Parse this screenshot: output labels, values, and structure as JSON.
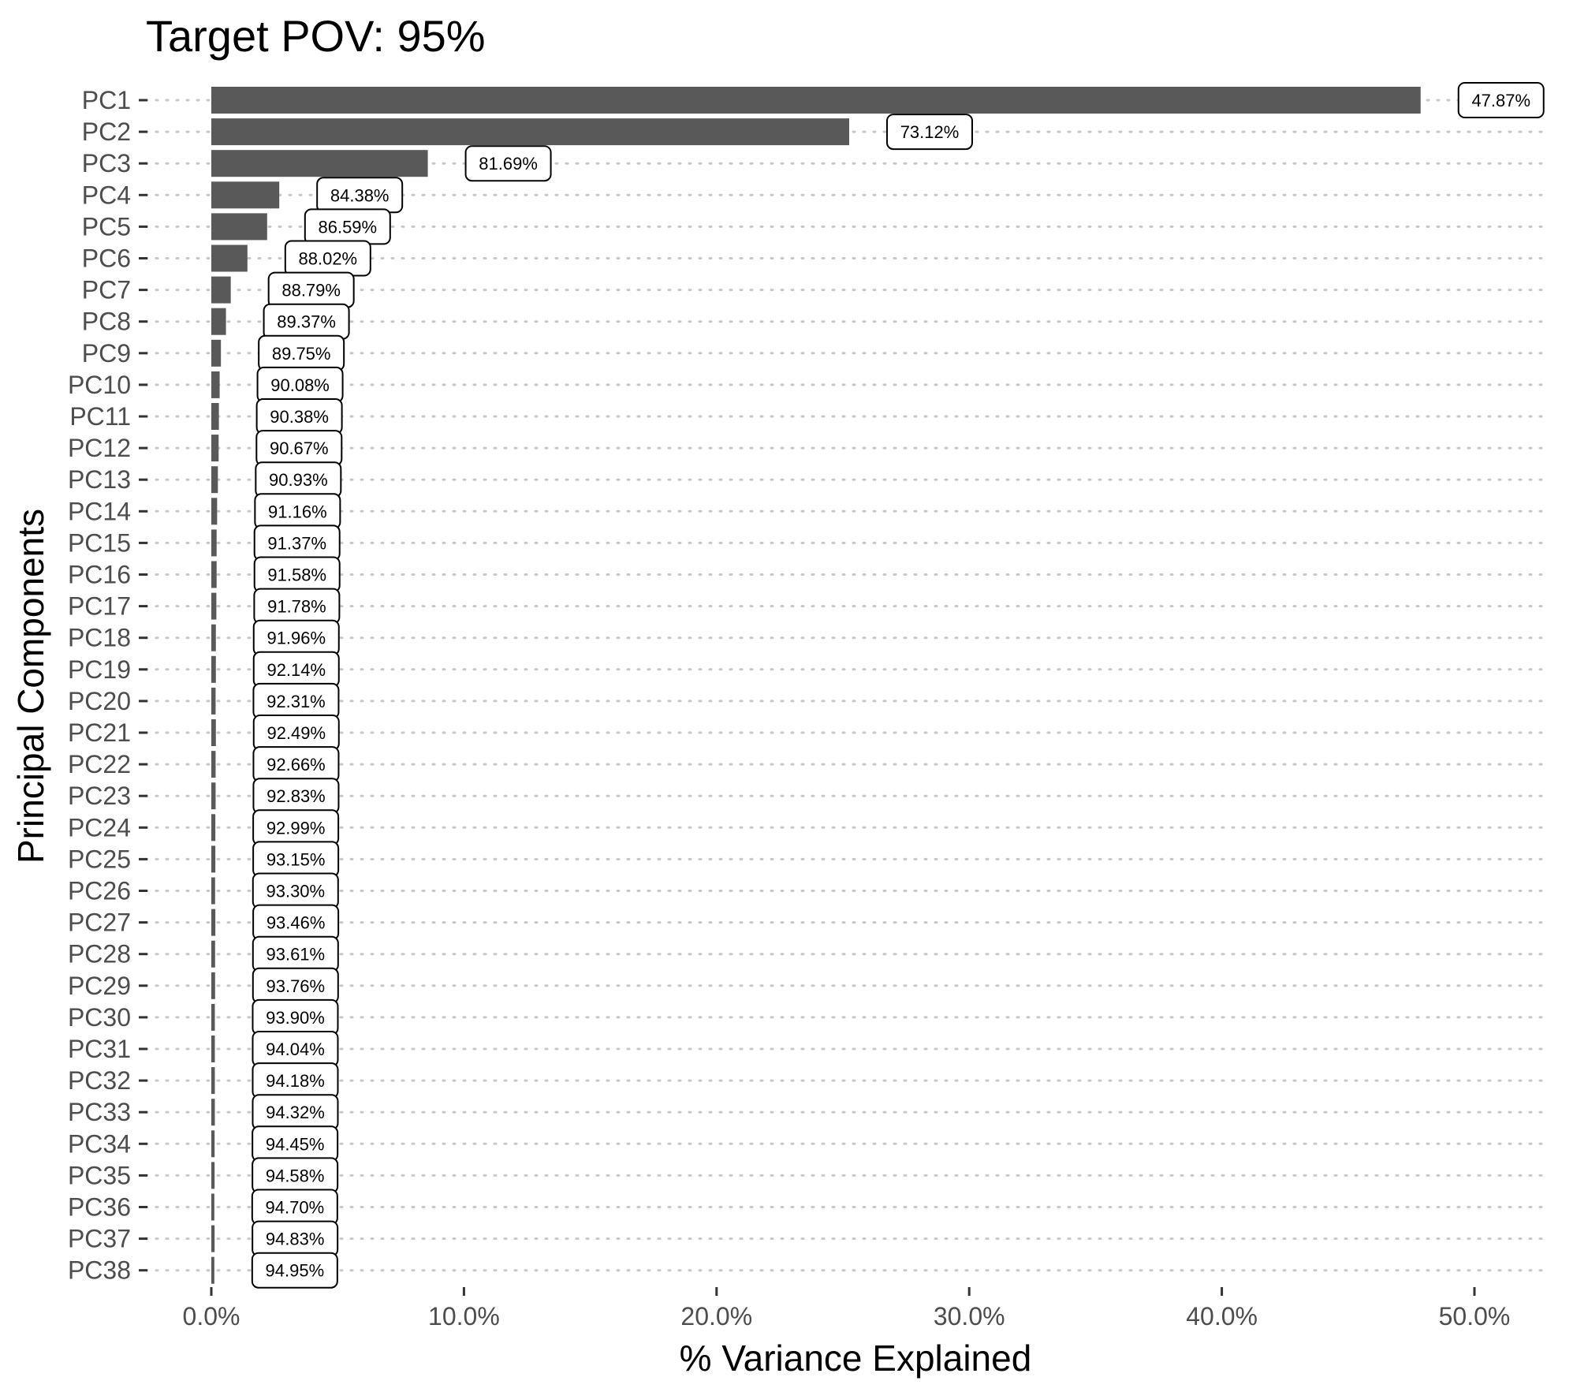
{
  "chart_data": {
    "type": "bar",
    "orientation": "horizontal",
    "title": "Target POV: 95%",
    "xlabel": "% Variance Explained",
    "ylabel": "Principal Components",
    "xlim": [
      0,
      52.5
    ],
    "x_ticks": [
      0,
      10,
      20,
      30,
      40,
      50
    ],
    "x_tick_labels": [
      "0.0%",
      "10.0%",
      "20.0%",
      "30.0%",
      "40.0%",
      "50.0%"
    ],
    "grid": "dotted horizontal",
    "categories": [
      "PC1",
      "PC2",
      "PC3",
      "PC4",
      "PC5",
      "PC6",
      "PC7",
      "PC8",
      "PC9",
      "PC10",
      "PC11",
      "PC12",
      "PC13",
      "PC14",
      "PC15",
      "PC16",
      "PC17",
      "PC18",
      "PC19",
      "PC20",
      "PC21",
      "PC22",
      "PC23",
      "PC24",
      "PC25",
      "PC26",
      "PC27",
      "PC28",
      "PC29",
      "PC30",
      "PC31",
      "PC32",
      "PC33",
      "PC34",
      "PC35",
      "PC36",
      "PC37",
      "PC38"
    ],
    "values": [
      47.87,
      25.25,
      8.57,
      2.69,
      2.21,
      1.43,
      0.77,
      0.58,
      0.38,
      0.33,
      0.3,
      0.29,
      0.26,
      0.23,
      0.21,
      0.21,
      0.2,
      0.18,
      0.18,
      0.17,
      0.18,
      0.17,
      0.17,
      0.16,
      0.16,
      0.15,
      0.16,
      0.15,
      0.15,
      0.14,
      0.14,
      0.14,
      0.14,
      0.13,
      0.13,
      0.12,
      0.13,
      0.12
    ],
    "cumulative_labels": [
      "47.87%",
      "73.12%",
      "81.69%",
      "84.38%",
      "86.59%",
      "88.02%",
      "88.79%",
      "89.37%",
      "89.75%",
      "90.08%",
      "90.38%",
      "90.67%",
      "90.93%",
      "91.16%",
      "91.37%",
      "91.58%",
      "91.78%",
      "91.96%",
      "92.14%",
      "92.31%",
      "92.49%",
      "92.66%",
      "92.83%",
      "92.99%",
      "93.15%",
      "93.30%",
      "93.46%",
      "93.61%",
      "93.76%",
      "93.90%",
      "94.04%",
      "94.18%",
      "94.32%",
      "94.45%",
      "94.58%",
      "94.70%",
      "94.83%",
      "94.95%"
    ],
    "bar_color": "#595959",
    "grid_color": "#c8c8c8"
  }
}
